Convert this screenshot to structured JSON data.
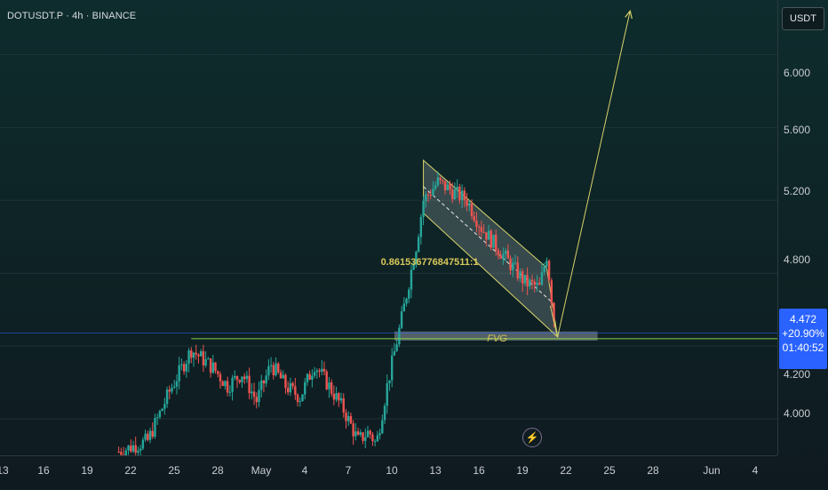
{
  "header": {
    "symbol": "DOTUSDT.P",
    "interval": "4h",
    "exchange": "BINANCE",
    "title_text": "DOTUSDT.P · 4h · BINANCE"
  },
  "price_axis": {
    "currency_label": "USDT",
    "ticks": [
      "6.000",
      "5.600",
      "5.200",
      "4.800",
      "4.200",
      "4.000"
    ]
  },
  "time_axis": {
    "ticks": [
      "13",
      "16",
      "19",
      "22",
      "25",
      "28",
      "May",
      "4",
      "7",
      "10",
      "13",
      "16",
      "19",
      "22",
      "25",
      "28",
      "Jun",
      "4"
    ]
  },
  "last_price": {
    "price": "4.472",
    "change": "+20.90%",
    "countdown": "01:40:52"
  },
  "annotations": {
    "fvg_label": "FVG",
    "fib_label": "0.861536776847511:1"
  },
  "colors": {
    "up": "#26a69a",
    "down": "#ef5350",
    "drawing": "#d9d26a",
    "support": "#8fcf4d",
    "last_price": "#2962ff"
  },
  "icons": {
    "alert": "lightning-icon"
  },
  "chart_data": {
    "type": "candlestick",
    "ylim": [
      3.8,
      6.3
    ],
    "xlim": [
      "2024-04-12",
      "2024-06-06"
    ],
    "anchors": [
      [
        "2024-04-20 00:00",
        3.82
      ],
      [
        "2024-04-22 00:00",
        3.88
      ],
      [
        "2024-04-23 12:00",
        4.15
      ],
      [
        "2024-04-25 00:00",
        4.38
      ],
      [
        "2024-04-26 12:00",
        4.28
      ],
      [
        "2024-04-27 12:00",
        4.18
      ],
      [
        "2024-04-28 12:00",
        4.25
      ],
      [
        "2024-04-29 12:00",
        4.1
      ],
      [
        "2024-04-30 12:00",
        4.3
      ],
      [
        "2024-05-01 12:00",
        4.18
      ],
      [
        "2024-05-02 12:00",
        4.12
      ],
      [
        "2024-05-03 12:00",
        4.3
      ],
      [
        "2024-05-04 12:00",
        4.18
      ],
      [
        "2024-05-05 12:00",
        4.05
      ],
      [
        "2024-05-06 12:00",
        3.88
      ],
      [
        "2024-05-07 06:00",
        3.93
      ],
      [
        "2024-05-07 18:00",
        3.86
      ],
      [
        "2024-05-08 12:00",
        4.18
      ],
      [
        "2024-05-09 12:00",
        4.55
      ],
      [
        "2024-05-10 12:00",
        4.95
      ],
      [
        "2024-05-11 00:00",
        5.2
      ],
      [
        "2024-05-12 00:00",
        5.3
      ],
      [
        "2024-05-13 00:00",
        5.25
      ],
      [
        "2024-05-14 00:00",
        5.2
      ],
      [
        "2024-05-15 00:00",
        5.05
      ],
      [
        "2024-05-16 00:00",
        4.95
      ],
      [
        "2024-05-17 00:00",
        4.85
      ],
      [
        "2024-05-18 00:00",
        4.75
      ],
      [
        "2024-05-19 00:00",
        4.72
      ],
      [
        "2024-05-19 12:00",
        4.9
      ],
      [
        "2024-05-20 00:00",
        4.55
      ]
    ],
    "last_price": 4.472,
    "fvg_zone": {
      "x0": "2024-05-09 00:00",
      "x1": "2024-05-23 00:00",
      "y0": 4.43,
      "y1": 4.48
    },
    "support_level": 4.44,
    "flag_channel": {
      "upper": [
        [
          "2024-05-11 00:00",
          5.42
        ],
        [
          "2024-05-19 12:00",
          4.83
        ]
      ],
      "lower": [
        [
          "2024-05-11 00:00",
          5.13
        ],
        [
          "2024-05-20 06:00",
          4.45
        ]
      ]
    },
    "projection": [
      [
        "2024-05-20 06:00",
        4.45
      ],
      [
        "2024-05-25 06:00",
        6.24
      ]
    ]
  }
}
